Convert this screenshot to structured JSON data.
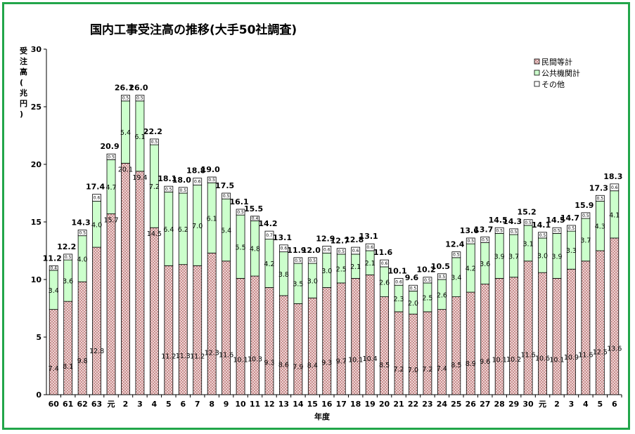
{
  "chart_data": {
    "type": "bar",
    "stacked": true,
    "title": "国内工事受注高の推移(大手50社調査)",
    "xlabel": "年度",
    "ylabel": "受注高(兆円)",
    "ylim": [
      0,
      30
    ],
    "yticks": [
      0,
      5,
      10,
      15,
      20,
      25,
      30
    ],
    "grid": false,
    "legend_position": "top-right",
    "categories": [
      "60",
      "61",
      "62",
      "63",
      "元",
      "2",
      "3",
      "4",
      "5",
      "6",
      "7",
      "8",
      "9",
      "10",
      "11",
      "12",
      "13",
      "14",
      "15",
      "16",
      "17",
      "18",
      "19",
      "20",
      "21",
      "22",
      "23",
      "24",
      "25",
      "26",
      "27",
      "28",
      "29",
      "30",
      "元",
      "2",
      "3",
      "4",
      "5",
      "6"
    ],
    "series": [
      {
        "name": "民間等計",
        "color": "#d9a3a3",
        "values": [
          7.4,
          8.1,
          9.8,
          12.8,
          15.7,
          20.1,
          19.4,
          14.5,
          11.2,
          11.3,
          11.2,
          12.3,
          11.6,
          10.1,
          10.3,
          9.3,
          8.6,
          7.9,
          8.4,
          9.3,
          9.7,
          10.1,
          10.4,
          8.5,
          7.2,
          7.0,
          7.2,
          7.4,
          8.5,
          8.9,
          9.6,
          10.1,
          10.2,
          11.6,
          10.6,
          10.1,
          10.9,
          11.6,
          12.5,
          13.6
        ]
      },
      {
        "name": "公共機関計",
        "color": "#ccffcc",
        "values": [
          3.4,
          3.6,
          4.0,
          4.0,
          4.7,
          5.4,
          6.1,
          7.2,
          6.4,
          6.2,
          7.0,
          6.1,
          5.4,
          5.5,
          4.8,
          4.2,
          3.8,
          3.5,
          3.0,
          3.0,
          2.5,
          2.1,
          2.1,
          2.6,
          2.3,
          2.0,
          2.5,
          2.6,
          3.4,
          4.2,
          3.6,
          3.9,
          3.7,
          3.1,
          3.0,
          3.9,
          3.3,
          3.7,
          4.3,
          4.1
        ]
      },
      {
        "name": "その他",
        "color": "#ffffff",
        "values": [
          0.4,
          0.5,
          0.5,
          0.6,
          0.5,
          0.5,
          0.5,
          0.5,
          0.5,
          0.5,
          0.6,
          0.5,
          0.5,
          0.5,
          0.4,
          0.7,
          0.6,
          0.5,
          0.5,
          0.6,
          0.5,
          0.6,
          0.6,
          0.6,
          0.6,
          0.5,
          0.5,
          0.5,
          0.5,
          0.5,
          0.5,
          0.5,
          0.5,
          0.5,
          0.5,
          0.5,
          0.5,
          0.5,
          0.5,
          0.6
        ]
      }
    ],
    "series_labels": [
      [
        "7.4",
        "8.1",
        "9.8",
        "12.8",
        "15.7",
        "20.1",
        "19.4",
        "14.5",
        "11.2",
        "11.3",
        "11.2",
        "12.3",
        "11.6",
        "10.1",
        "10.3",
        "9.3",
        "8.6",
        "7.9",
        "8.4",
        "9.3",
        "9.7",
        "10.1",
        "10.4",
        "8.5",
        "7.2",
        "7.0",
        "7.2",
        "7.4",
        "8.5",
        "8.9",
        "9.6",
        "10.1",
        "10.2",
        "11.6",
        "10.6",
        "10.1",
        "10.9",
        "11.6",
        "12.5",
        "13.6"
      ],
      [
        "3.4",
        "3.6",
        "4.0",
        "4.0",
        "4.7",
        "5.4",
        "6.1",
        "7.2",
        "6.4",
        "6.2",
        "7.0",
        "6.1",
        "5.4",
        "5.5",
        "4.8",
        "4.2",
        "3.8",
        "3.5",
        "3.0",
        "3.0",
        "2.5",
        "2.1",
        "2.1",
        "2.6",
        "2.3",
        "2.0",
        "2.5",
        "2.6",
        "3.4",
        "4.2",
        "3.6",
        "3.9",
        "3.7",
        "3.1",
        "3.0",
        "3.9",
        "3.3",
        "3.7",
        "4.3",
        "4.1"
      ],
      [
        "0.4",
        "0.5",
        "0.5",
        "0.6",
        "0.5",
        "0.5",
        "0.5",
        "0.5",
        "0.5",
        "0.5",
        "0.6",
        "0.5",
        "0.5",
        "0.5",
        "0.4",
        "0.7",
        "0.6",
        "0.5",
        "0.5",
        "0.6",
        "0.5",
        "0.6",
        "0.6",
        "0.6",
        "0.6",
        "0.5",
        "0.5",
        "0.5",
        "0.5",
        "0.5",
        "0.5",
        "0.5",
        "0.5",
        "0.5",
        "0.5",
        "0.5",
        "0.5",
        "0.5",
        "0.5",
        "0.6"
      ]
    ],
    "totals": [
      "11.2",
      "12.2",
      "14.3",
      "17.4",
      "20.9",
      "26.1",
      "26.0",
      "22.2",
      "18.1",
      "18.0",
      "18.8",
      "19.0",
      "17.5",
      "16.1",
      "15.5",
      "14.2",
      "13.1",
      "11.9",
      "12.0",
      "12.9",
      "12.7",
      "12.8",
      "13.1",
      "11.6",
      "10.1",
      "9.6",
      "10.2",
      "10.5",
      "12.4",
      "13.6",
      "13.7",
      "14.5",
      "14.3",
      "15.2",
      "14.1",
      "14.5",
      "14.7",
      "15.9",
      "17.3",
      "18.3"
    ]
  },
  "colors": {
    "border": "#22a64a",
    "pattern_line": "#b06060"
  }
}
